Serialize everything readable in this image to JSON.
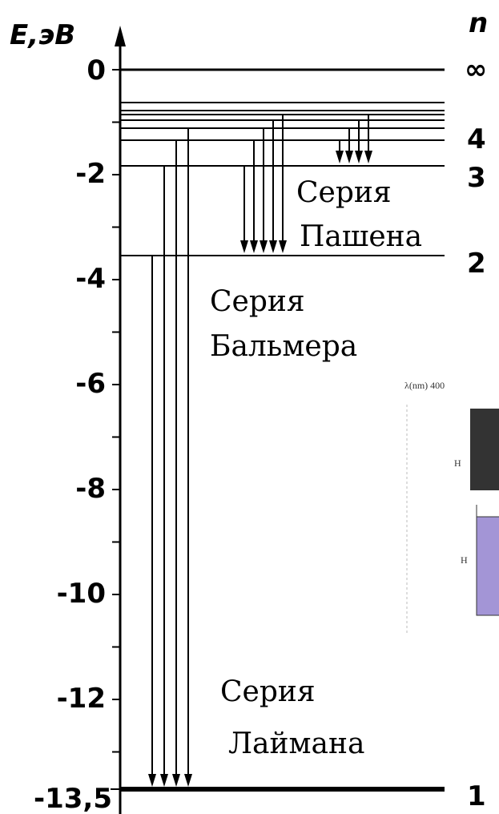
{
  "axis": {
    "label": "E,эВ",
    "ticks": [
      "0",
      "-2",
      "-4",
      "-6",
      "-8",
      "-10",
      "-12",
      "-13,5"
    ]
  },
  "levels": {
    "header": "n",
    "labels": [
      "∞",
      "4",
      "3",
      "2",
      "1"
    ]
  },
  "series": [
    {
      "line1": "Серия",
      "line2": "Пашена"
    },
    {
      "line1": "Серия",
      "line2": "Бальмера"
    },
    {
      "line1": "Серия",
      "line2": "Лаймана"
    }
  ],
  "inset": {
    "scale_label": "λ(nm) 400",
    "rows": [
      "H",
      "H"
    ]
  }
}
